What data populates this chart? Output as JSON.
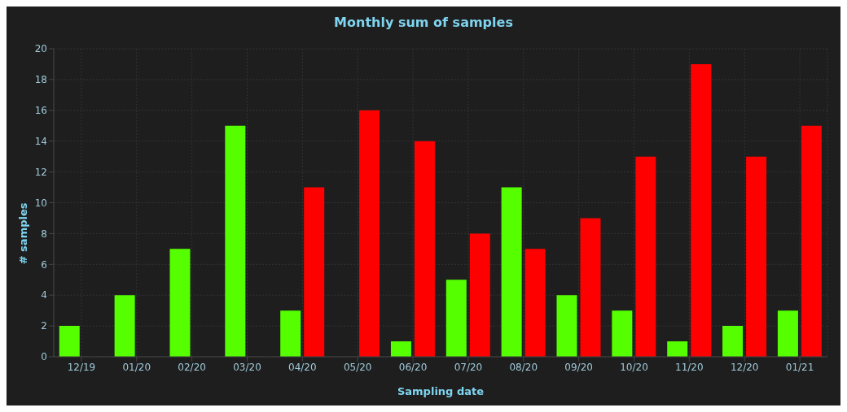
{
  "chart_data": {
    "type": "bar",
    "title": "Monthly sum of samples",
    "xlabel": "Sampling date",
    "ylabel": "# samples",
    "categories": [
      "12/19",
      "01/20",
      "02/20",
      "03/20",
      "04/20",
      "05/20",
      "06/20",
      "07/20",
      "08/20",
      "09/20",
      "10/20",
      "11/20",
      "12/20",
      "01/21"
    ],
    "series": [
      {
        "color": "#55ff00",
        "values": [
          2,
          4,
          7,
          15,
          3,
          null,
          1,
          5,
          11,
          4,
          3,
          1,
          2,
          3
        ]
      },
      {
        "color": "#ff0000",
        "values": [
          null,
          null,
          null,
          null,
          11,
          16,
          14,
          8,
          7,
          9,
          13,
          19,
          13,
          15
        ]
      }
    ],
    "ylim": [
      0,
      20
    ],
    "yticks": [
      0,
      2,
      4,
      6,
      8,
      10,
      12,
      14,
      16,
      18,
      20
    ],
    "grid": true
  }
}
